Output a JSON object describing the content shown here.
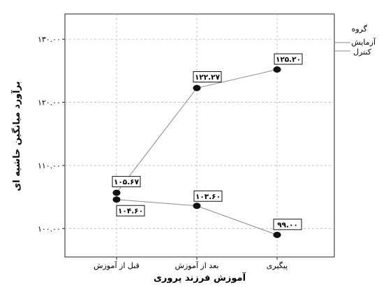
{
  "chart_data": {
    "type": "line",
    "title": "",
    "xlabel": "آموزش فرزند پروری",
    "ylabel": "برآورد میانگین حاشیه ای",
    "categories": [
      "قبل از آموزش",
      "بعد از آموزش",
      "پیگیری"
    ],
    "y_ticks": [
      100,
      110,
      120,
      130
    ],
    "y_tick_labels": [
      "۱۰۰.۰۰",
      "۱۱۰.۰۰",
      "۱۲۰.۰۰",
      "۱۳۰.۰۰"
    ],
    "ylim": [
      95.5,
      134
    ],
    "grid": true,
    "legend_position": "right",
    "legend_title": "گروه",
    "series": [
      {
        "name": "آزمایش",
        "values": [
          105.67,
          122.27,
          125.2
        ],
        "value_labels": [
          "۱۰۵.۶۷",
          "۱۲۲.۲۷",
          "۱۲۵.۲۰"
        ]
      },
      {
        "name": "کنترل",
        "values": [
          104.6,
          103.6,
          99.0
        ],
        "value_labels": [
          "۱۰۴.۶۰",
          "۱۰۳.۶۰",
          "۹۹.۰۰"
        ]
      }
    ]
  },
  "colors": {
    "line": "#8c8c8c",
    "marker": "#111111",
    "grid": "#b8b8b8",
    "frame": "#222222"
  }
}
